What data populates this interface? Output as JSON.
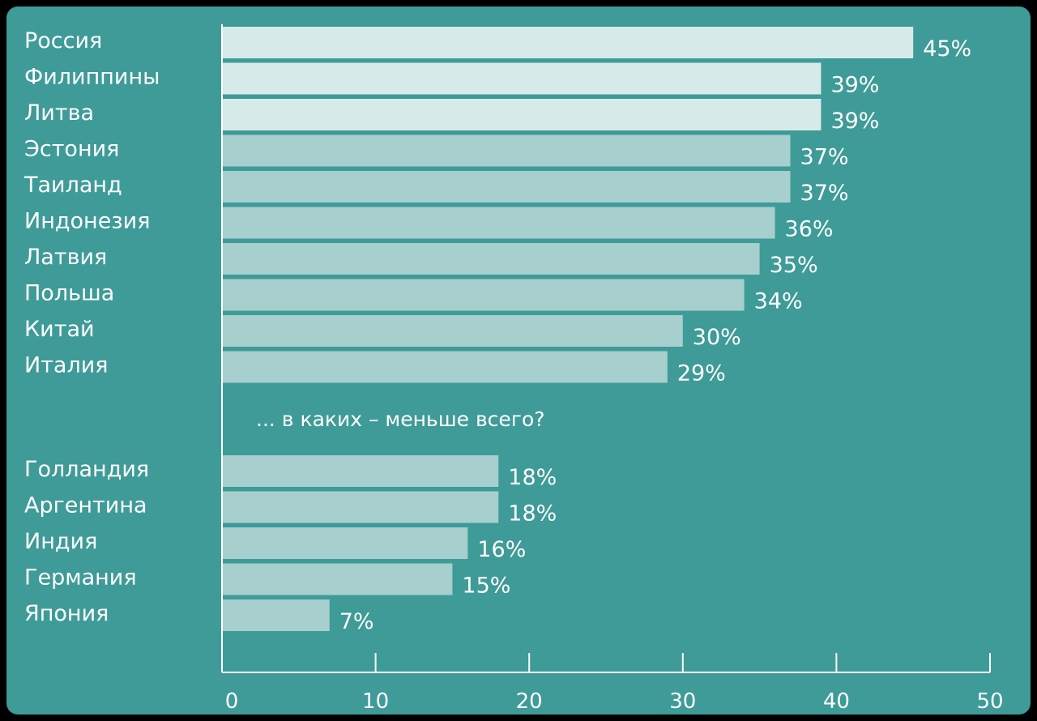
{
  "colors": {
    "background": "#3e9b98",
    "bar_top": "#d7eaea",
    "bar_other": "#a7cfcd",
    "text": "#ffffff"
  },
  "chart_data": {
    "type": "bar",
    "orientation": "horizontal",
    "groups": [
      {
        "categories": [
          "Россия",
          "Филиппины",
          "Литва",
          "Эстония",
          "Таиланд",
          "Индонезия",
          "Латвия",
          "Польша",
          "Китай",
          "Италия"
        ],
        "values": [
          45,
          39,
          39,
          37,
          37,
          36,
          35,
          34,
          30,
          29
        ],
        "value_labels": [
          "45%",
          "39%",
          "39%",
          "37%",
          "37%",
          "36%",
          "35%",
          "34%",
          "30%",
          "29%"
        ]
      },
      {
        "categories": [
          "Голландия",
          "Аргентина",
          "Индия",
          "Германия",
          "Япония"
        ],
        "values": [
          18,
          18,
          16,
          15,
          7
        ],
        "value_labels": [
          "18%",
          "18%",
          "16%",
          "15%",
          "7%"
        ]
      }
    ],
    "section_note": "... в каких – меньше всего?",
    "xlim": [
      0,
      50
    ],
    "x_ticks": [
      0,
      10,
      20,
      30,
      40,
      50
    ],
    "x_tick_labels": [
      "0",
      "10",
      "20",
      "30",
      "40",
      "50"
    ],
    "grid": false,
    "title": "",
    "xlabel": "",
    "ylabel": ""
  }
}
